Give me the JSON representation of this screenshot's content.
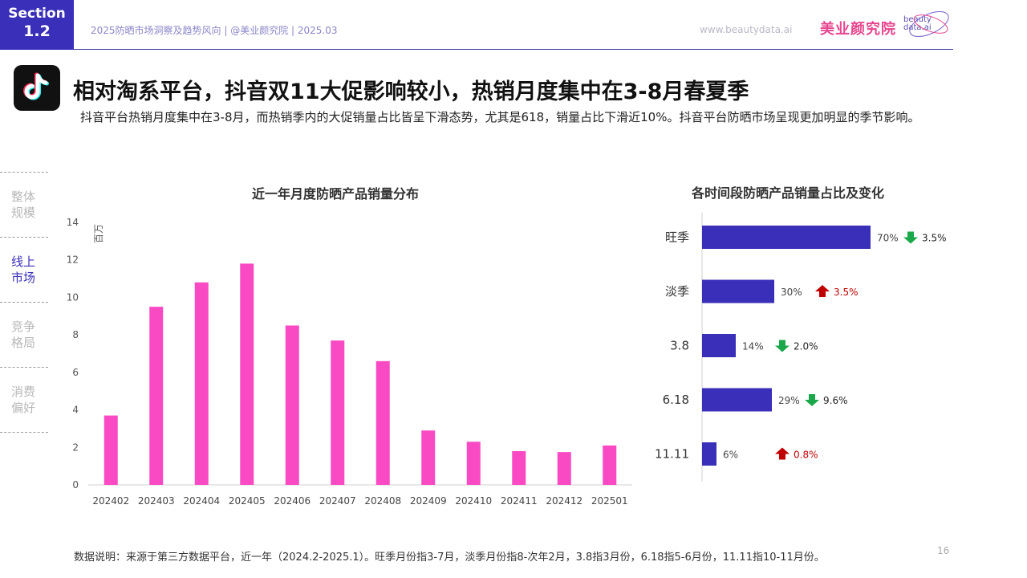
{
  "header": {
    "section_label": "Section",
    "section_number": "1.2",
    "meta": "2025防晒市场洞察及趋势风向 | @美业颜究院 | 2025.03",
    "url": "www.beautydata.ai",
    "brand_cn": "美业颜究院",
    "brand_en_1": "beauty",
    "brand_en_2": "data.ai"
  },
  "title": "相对淘系平台，抖音双11大促影响较小，热销月度集中在3-8月春夏季",
  "subtitle": "抖音平台热销月度集中在3-8月，而热销季内的大促销量占比皆呈下滑态势，尤其是618，销量占比下滑近10%。抖音平台防晒市场呈现更加明显的季节影响。",
  "sidebar": {
    "items": [
      {
        "line1": "整体",
        "line2": "规模"
      },
      {
        "line1": "线上",
        "line2": "市场"
      },
      {
        "line1": "竞争",
        "line2": "格局"
      },
      {
        "line1": "消费",
        "line2": "偏好"
      }
    ]
  },
  "colors": {
    "accent": "#3a2fb8",
    "bar_monthly": "#f94ac4",
    "bar_share": "#3a2fb8",
    "down": "#1aa84a",
    "up": "#c00000"
  },
  "chart_data": [
    {
      "type": "bar",
      "title": "近一年月度防晒产品销量分布",
      "ylabel": "百万",
      "categories": [
        "202402",
        "202403",
        "202404",
        "202405",
        "202406",
        "202407",
        "202408",
        "202409",
        "202410",
        "202411",
        "202412",
        "202501"
      ],
      "values": [
        3.7,
        9.5,
        10.8,
        11.8,
        8.5,
        7.7,
        6.6,
        2.9,
        2.3,
        1.8,
        1.75,
        2.1
      ],
      "ylim": [
        0,
        14
      ],
      "yticks": [
        0,
        2,
        4,
        6,
        8,
        10,
        12,
        14
      ],
      "grid": false
    },
    {
      "type": "bar",
      "orientation": "horizontal",
      "title": "各时间段防晒产品销量占比及变化",
      "categories": [
        "旺季",
        "淡季",
        "3.8",
        "6.18",
        "11.11"
      ],
      "values": [
        70,
        30,
        14,
        29,
        6
      ],
      "labels": [
        "70%",
        "30%",
        "14%",
        "29%",
        "6%"
      ],
      "changes": [
        {
          "direction": "down",
          "label": "3.5%"
        },
        {
          "direction": "up",
          "label": "3.5%"
        },
        {
          "direction": "down",
          "label": "2.0%"
        },
        {
          "direction": "down",
          "label": "9.6%"
        },
        {
          "direction": "up",
          "label": "0.8%"
        }
      ],
      "xlim": [
        0,
        100
      ]
    }
  ],
  "footnote": "数据说明：来源于第三方数据平台，近一年（2024.2-2025.1）。旺季月份指3-7月，淡季月份指8-次年2月，3.8指3月份，6.18指5-6月份，11.11指10-11月份。",
  "page_number": "16"
}
